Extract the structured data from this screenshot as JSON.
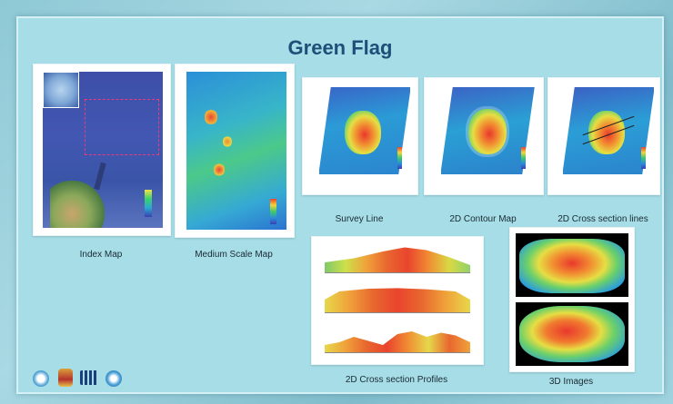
{
  "slide": {
    "title": "Green Flag",
    "captions": {
      "index_map": "Index Map",
      "medium_scale_map": "Medium Scale Map",
      "survey_line": "Survey Line",
      "contour_map": "2D Contour Map",
      "cross_section_lines": "2D Cross section lines",
      "cross_section_profiles": "2D Cross section Profiles",
      "images_3d": "3D Images"
    },
    "logos": [
      "ihb-logo-icon",
      "navy-crest-icon",
      "unesco-logo-icon",
      "gebco-logo-icon"
    ]
  }
}
